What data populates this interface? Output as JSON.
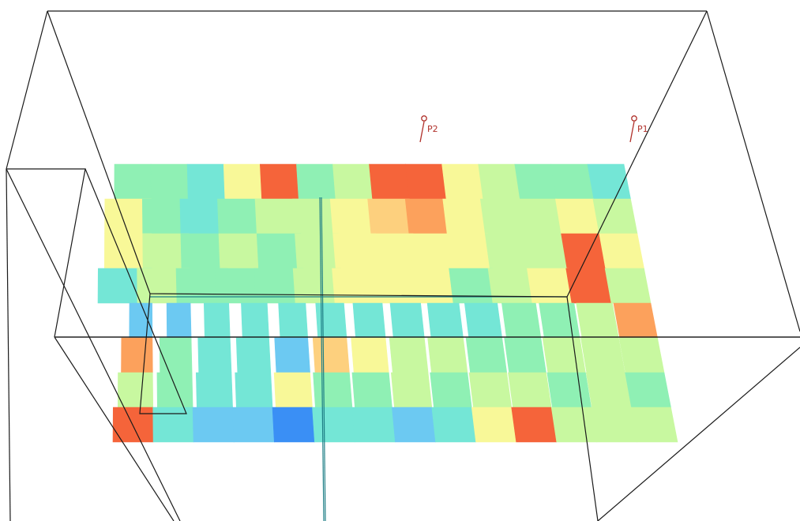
{
  "viewport": {
    "background": "#ffffff",
    "wireframe_color": "#1a1a1a",
    "axis_color": "#1f7f86"
  },
  "probes": [
    {
      "label": "P2",
      "icon": "probe-pin-icon",
      "color": "#b0302a"
    },
    {
      "label": "P1",
      "icon": "probe-pin-icon",
      "color": "#b0302a"
    }
  ],
  "heatmap": {
    "rows": 8,
    "cols": 14,
    "colormap": [
      "#3a8ff5",
      "#6cc9f2",
      "#74e6d6",
      "#8ff0b4",
      "#c8f8a0",
      "#f8f898",
      "#fdd07e",
      "#fca15c",
      "#f5643a"
    ],
    "levels": [
      [
        3,
        3,
        2,
        5,
        8,
        3,
        4,
        8,
        8,
        5,
        4,
        3,
        3,
        2
      ],
      [
        5,
        3,
        2,
        3,
        4,
        4,
        5,
        6,
        7,
        5,
        4,
        4,
        5,
        4
      ],
      [
        5,
        4,
        3,
        4,
        3,
        4,
        5,
        5,
        5,
        5,
        4,
        4,
        8,
        5
      ],
      [
        2,
        4,
        3,
        3,
        3,
        4,
        5,
        5,
        5,
        3,
        4,
        5,
        8,
        4
      ],
      [
        1,
        1,
        2,
        2,
        2,
        2,
        2,
        2,
        2,
        2,
        3,
        3,
        4,
        7
      ],
      [
        7,
        3,
        2,
        2,
        1,
        6,
        5,
        4,
        4,
        3,
        3,
        4,
        4,
        4
      ],
      [
        4,
        3,
        2,
        2,
        5,
        3,
        3,
        4,
        3,
        4,
        4,
        3,
        4,
        3
      ],
      [
        8,
        2,
        1,
        1,
        0,
        2,
        2,
        1,
        2,
        5,
        8,
        4,
        4,
        4
      ]
    ]
  }
}
